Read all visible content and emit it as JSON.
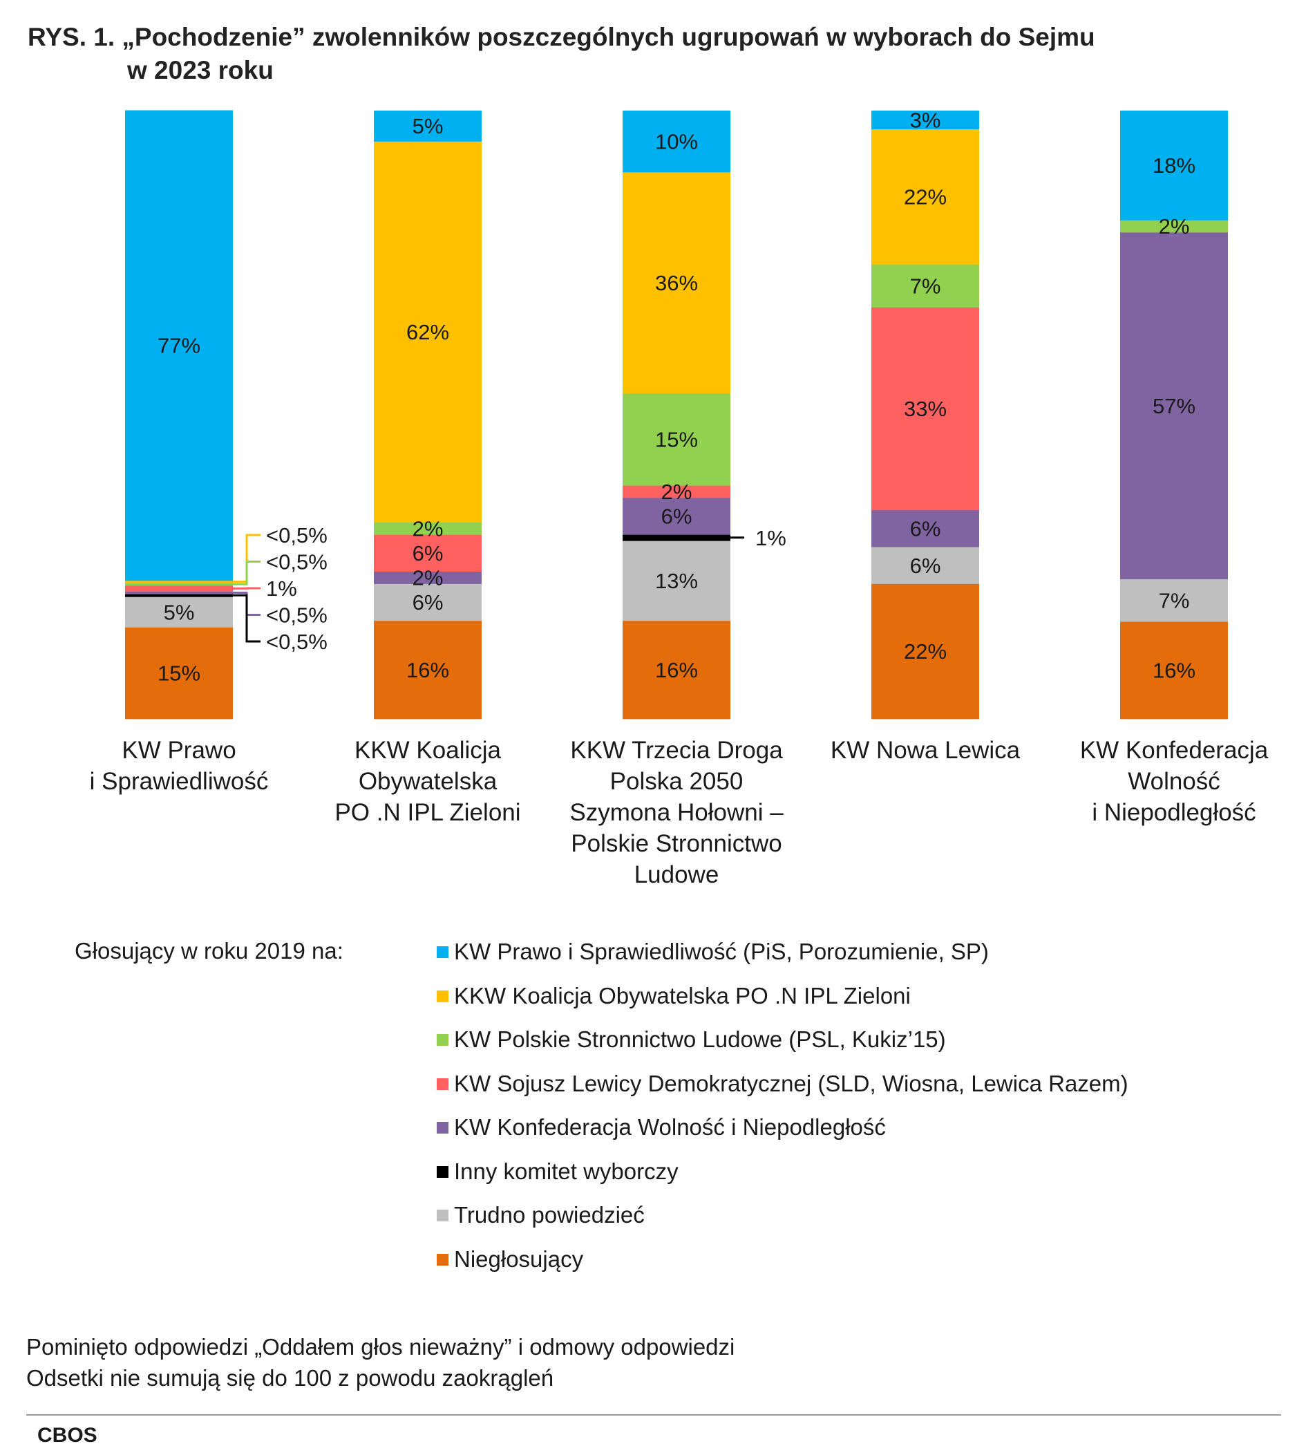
{
  "title": {
    "line1": "RYS. 1. „Pochodzenie” zwolenników poszczególnych ugrupowań w wyborach do Sejmu",
    "line2": "w 2023 roku"
  },
  "colors": {
    "pis": "#00b0f0",
    "ko": "#ffc000",
    "psl": "#92d050",
    "sld": "#ff6161",
    "konf": "#8064a2",
    "inny": "#000000",
    "trudno": "#bfbfbf",
    "nieg": "#e46c0a"
  },
  "chart_data": {
    "type": "bar",
    "stacked": true,
    "ylim": [
      0,
      100
    ],
    "categories": [
      [
        "KW Prawo",
        "i Sprawiedliwość"
      ],
      [
        "KKW Koalicja",
        "Obywatelska",
        "PO .N IPL Zieloni"
      ],
      [
        "KKW Trzecia Droga",
        "Polska 2050",
        "Szymona Hołowni –",
        "Polskie Stronnictwo",
        "Ludowe"
      ],
      [
        "KW Nowa Lewica"
      ],
      [
        "KW Konfederacja",
        "Wolność",
        "i Niepodległość"
      ]
    ],
    "series": [
      {
        "key": "nieg",
        "name": "Niegłosujący",
        "values": [
          15,
          16,
          16,
          22,
          16
        ],
        "labels": [
          "15%",
          "16%",
          "16%",
          "22%",
          "16%"
        ]
      },
      {
        "key": "trudno",
        "name": "Trudno powiedzieć",
        "values": [
          5,
          6,
          13,
          6,
          7
        ],
        "labels": [
          "5%",
          "6%",
          "13%",
          "6%",
          "7%"
        ]
      },
      {
        "key": "inny",
        "name": "Inny komitet wyborczy",
        "values": [
          0.4,
          0,
          1,
          0,
          0
        ],
        "labels": [
          "<0,5%",
          "",
          "1%",
          "",
          ""
        ]
      },
      {
        "key": "konf",
        "name": "KW Konfederacja Wolność i Niepodległość",
        "values": [
          0.4,
          2,
          6,
          6,
          57
        ],
        "labels": [
          "<0,5%",
          "2%",
          "6%",
          "6%",
          "57%"
        ]
      },
      {
        "key": "sld",
        "name": "KW Sojusz Lewicy Demokratycznej (SLD, Wiosna, Lewica Razem)",
        "values": [
          1,
          6,
          2,
          33,
          0
        ],
        "labels": [
          "1%",
          "6%",
          "2%",
          "33%",
          ""
        ]
      },
      {
        "key": "psl",
        "name": "KW Polskie Stronnictwo Ludowe (PSL, Kukiz’15)",
        "values": [
          0.4,
          2,
          15,
          7,
          2
        ],
        "labels": [
          "<0,5%",
          "2%",
          "15%",
          "7%",
          "2%"
        ]
      },
      {
        "key": "ko",
        "name": "KKW Koalicja Obywatelska PO .N IPL Zieloni",
        "values": [
          0.4,
          62,
          36,
          22,
          0
        ],
        "labels": [
          "<0,5%",
          "62%",
          "36%",
          "22%",
          ""
        ]
      },
      {
        "key": "pis",
        "name": "KW Prawo i Sprawiedliwość (PiS, Porozumienie, SP)",
        "values": [
          77,
          5,
          10,
          3,
          18
        ],
        "labels": [
          "77%",
          "5%",
          "10%",
          "3%",
          "18%"
        ]
      }
    ]
  },
  "legend": {
    "caption": "Głosujący w roku 2019 na:",
    "items": [
      {
        "key": "pis",
        "label": "KW Prawo i Sprawiedliwość (PiS, Porozumienie, SP)"
      },
      {
        "key": "ko",
        "label": "KKW Koalicja Obywatelska PO .N IPL Zieloni"
      },
      {
        "key": "psl",
        "label": "KW Polskie Stronnictwo Ludowe (PSL, Kukiz’15)"
      },
      {
        "key": "sld",
        "label": "KW Sojusz Lewicy Demokratycznej (SLD, Wiosna, Lewica Razem)"
      },
      {
        "key": "konf",
        "label": "KW Konfederacja Wolność i Niepodległość"
      },
      {
        "key": "inny",
        "label": "Inny komitet wyborczy"
      },
      {
        "key": "trudno",
        "label": "Trudno powiedzieć"
      },
      {
        "key": "nieg",
        "label": "Niegłosujący"
      }
    ]
  },
  "notes": {
    "line1": "Pominięto odpowiedzi „Oddałem głos nieważny” i odmowy odpowiedzi",
    "line2": "Odsetki nie sumują się do 100 z powodu zaokrągleń"
  },
  "source": "CBOS"
}
